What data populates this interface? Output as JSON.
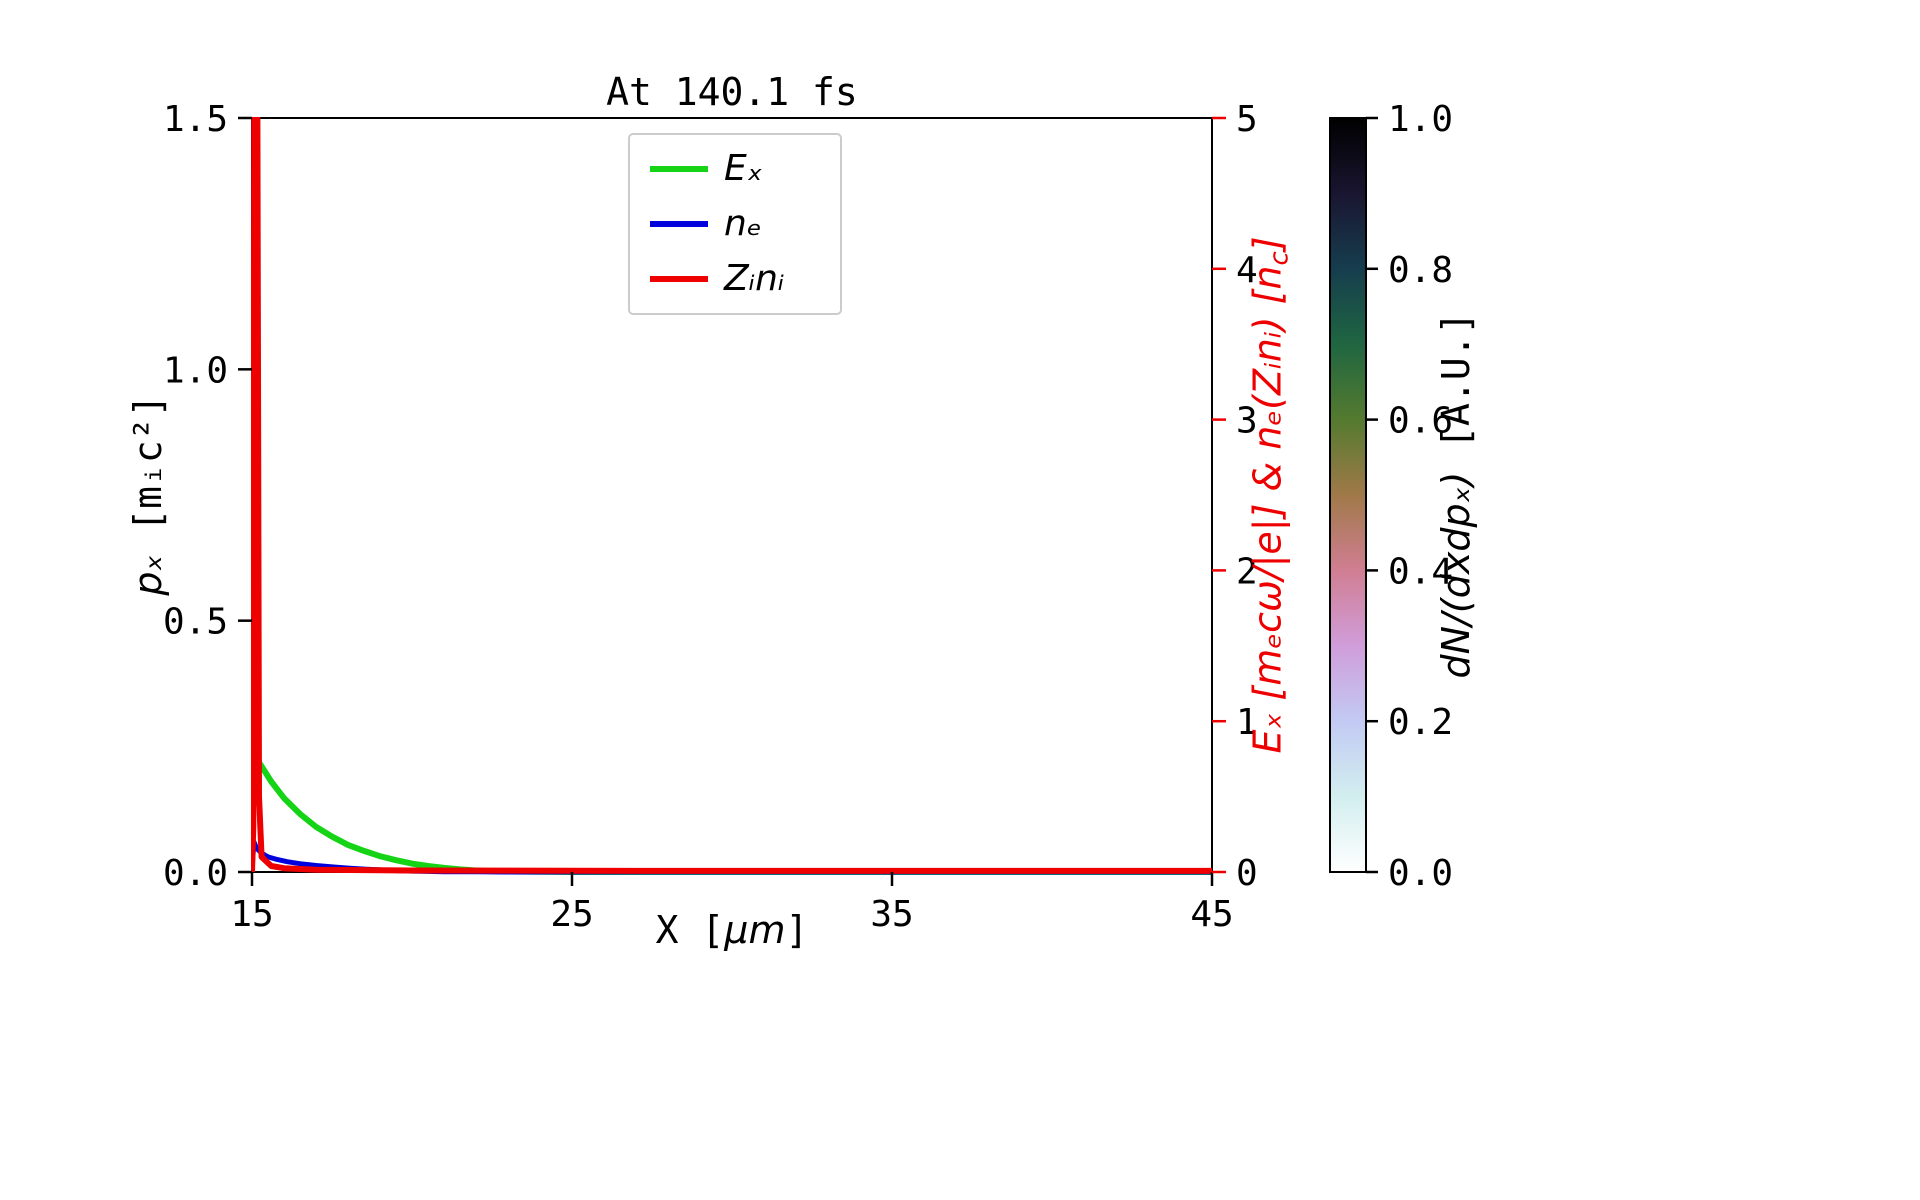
{
  "chart_data": {
    "type": "line",
    "title": "At 140.1 fs",
    "x_range": [
      15,
      45
    ],
    "y_left_range": [
      0,
      1.5
    ],
    "y_right_range": [
      0,
      5
    ],
    "x_ticks": [
      "15",
      "25",
      "35",
      "45"
    ],
    "y_ticks_left": [
      "0.0",
      "0.5",
      "1.0",
      "1.5"
    ],
    "y_ticks_right": [
      "0",
      "1",
      "2",
      "3",
      "4",
      "5"
    ],
    "xlabel": {
      "pre": "X [",
      "mu": "μm",
      "post": "]"
    },
    "ylabel_left": {
      "var": "pₓ",
      "unit": " [mᵢc²]"
    },
    "ylabel_right": {
      "main": "Eₓ [mₑcω/|e|] & nₑ(Zᵢnᵢ) [n",
      "sub": "c",
      "post": "]"
    },
    "axis_color_right": "#ee0000",
    "axis_color_left": "#000000",
    "grid": false,
    "legend_position": "upper center inside",
    "series": [
      {
        "name": "Ex",
        "legend": "Eₓ",
        "color": "#15d415",
        "width": 6,
        "axis": "right",
        "points": [
          [
            15.0,
            0.1
          ],
          [
            15.06,
            0.78
          ],
          [
            15.3,
            0.7
          ],
          [
            15.6,
            0.6
          ],
          [
            16.0,
            0.49
          ],
          [
            16.5,
            0.385
          ],
          [
            17.0,
            0.3
          ],
          [
            17.5,
            0.235
          ],
          [
            18.0,
            0.18
          ],
          [
            18.5,
            0.14
          ],
          [
            19.0,
            0.105
          ],
          [
            19.5,
            0.078
          ],
          [
            20.0,
            0.056
          ],
          [
            20.5,
            0.04
          ],
          [
            21.0,
            0.027
          ],
          [
            21.5,
            0.017
          ],
          [
            22.0,
            0.01
          ],
          [
            22.5,
            0.006
          ],
          [
            23.0,
            0.003
          ],
          [
            24.0,
            0.001
          ],
          [
            25.0,
            0.0
          ],
          [
            45.0,
            0.0
          ]
        ]
      },
      {
        "name": "ne",
        "legend": "nₑ",
        "color": "#0000dd",
        "width": 5,
        "axis": "right",
        "points": [
          [
            15.0,
            0.01
          ],
          [
            15.06,
            0.2
          ],
          [
            15.15,
            0.155
          ],
          [
            15.3,
            0.125
          ],
          [
            15.5,
            0.1
          ],
          [
            15.8,
            0.082
          ],
          [
            16.1,
            0.068
          ],
          [
            16.5,
            0.055
          ],
          [
            17.0,
            0.043
          ],
          [
            17.5,
            0.034
          ],
          [
            18.0,
            0.026
          ],
          [
            18.5,
            0.019
          ],
          [
            19.0,
            0.014
          ],
          [
            19.5,
            0.009
          ],
          [
            20.0,
            0.006
          ],
          [
            20.5,
            0.004
          ],
          [
            21.0,
            0.002
          ],
          [
            22.0,
            0.001
          ],
          [
            23.0,
            0.0
          ],
          [
            45.0,
            0.0
          ]
        ]
      },
      {
        "name": "Zi_ni",
        "legend": "Zᵢnᵢ",
        "color": "#ee0000",
        "width": 6,
        "axis": "right",
        "points": [
          [
            15.0,
            0.0
          ],
          [
            15.04,
            0.3
          ],
          [
            15.07,
            5.0
          ],
          [
            15.17,
            5.0
          ],
          [
            15.22,
            0.5
          ],
          [
            15.3,
            0.1
          ],
          [
            15.6,
            0.04
          ],
          [
            16.0,
            0.025
          ],
          [
            17.0,
            0.015
          ],
          [
            20.0,
            0.01
          ],
          [
            25.0,
            0.008
          ],
          [
            35.0,
            0.007
          ],
          [
            45.0,
            0.007
          ]
        ]
      }
    ],
    "colorbar": {
      "label": {
        "var": "dN/(dxdpₓ)",
        "unit": " [A.U.]"
      },
      "ticks": [
        "0.0",
        "0.2",
        "0.4",
        "0.6",
        "0.8",
        "1.0"
      ],
      "range": [
        0,
        1
      ],
      "colormap": "cubehelix_r",
      "gradient_stops": [
        {
          "v": 0.0,
          "color": "#ffffff"
        },
        {
          "v": 0.1,
          "color": "#d2eeef"
        },
        {
          "v": 0.2,
          "color": "#c2caf3"
        },
        {
          "v": 0.3,
          "color": "#d09dda"
        },
        {
          "v": 0.4,
          "color": "#d07e92"
        },
        {
          "v": 0.5,
          "color": "#a07949"
        },
        {
          "v": 0.6,
          "color": "#547a2f"
        },
        {
          "v": 0.7,
          "color": "#1f6641"
        },
        {
          "v": 0.8,
          "color": "#163d4e"
        },
        {
          "v": 0.9,
          "color": "#1a1530"
        },
        {
          "v": 1.0,
          "color": "#000000"
        }
      ]
    }
  }
}
